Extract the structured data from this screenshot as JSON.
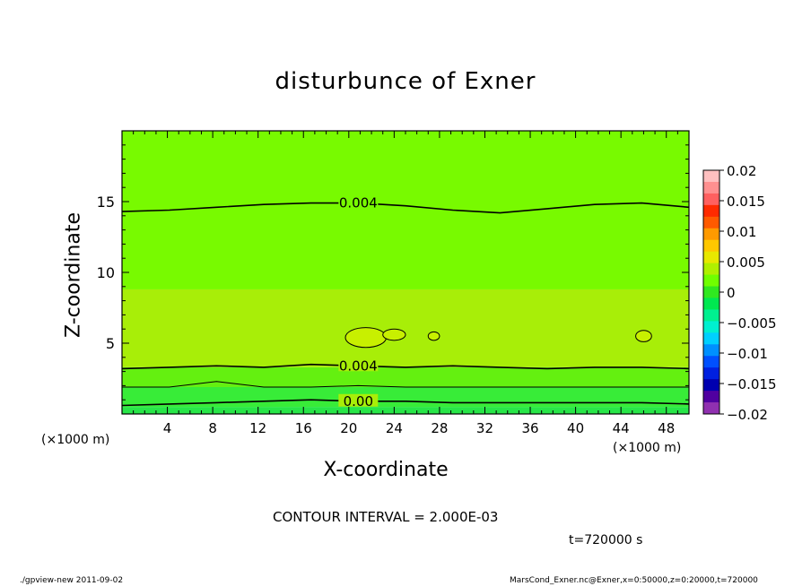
{
  "chart_data": {
    "type": "heatmap",
    "title": "disturbunce of Exner",
    "xlabel": "X-coordinate",
    "ylabel": "Z-coordinate",
    "x_unit": "(×1000 m)",
    "x_unit_left": "(×1000 m)",
    "xlim": [
      0,
      50
    ],
    "ylim": [
      0,
      20
    ],
    "x_ticks": [
      4,
      8,
      12,
      16,
      20,
      24,
      28,
      32,
      36,
      40,
      44,
      48
    ],
    "y_ticks": [
      5,
      10,
      15
    ],
    "colorbar": {
      "ticks": [
        "0.02",
        "0.015",
        "0.01",
        "0.005",
        "0",
        "−0.005",
        "−0.01",
        "−0.015",
        "−0.02"
      ],
      "range": [
        -0.02,
        0.02
      ],
      "colors": [
        "#ffc0c0",
        "#ff9090",
        "#ff6060",
        "#ff2a00",
        "#ff5a00",
        "#ff9a00",
        "#ffc800",
        "#e8e800",
        "#b0f000",
        "#70ff00",
        "#30e820",
        "#00e850",
        "#00f090",
        "#00f0d0",
        "#00d0ff",
        "#0090ff",
        "#0050ff",
        "#0020e0",
        "#0000b0",
        "#5000a0",
        "#9030b0"
      ]
    },
    "field_bands": [
      {
        "z_range": [
          0,
          0.5
        ],
        "value": -0.001,
        "color": "#28e648"
      },
      {
        "z_range": [
          0.5,
          1.9
        ],
        "value": 0.0,
        "color": "#38ec38"
      },
      {
        "z_range": [
          1.9,
          3.3
        ],
        "value": 0.003,
        "color": "#64f010"
      },
      {
        "z_range": [
          3.3,
          8.8
        ],
        "value": 0.005,
        "color": "#a8ee08"
      },
      {
        "z_range": [
          8.8,
          20
        ],
        "value": 0.004,
        "color": "#78fa00"
      }
    ],
    "contours": [
      {
        "level": 0.004,
        "label": "0.004",
        "z": [
          14.3,
          14.4,
          14.6,
          14.8,
          14.9,
          14.9,
          14.7,
          14.4,
          14.2,
          14.5,
          14.8,
          14.9,
          14.6
        ]
      },
      {
        "level": 0.004,
        "label": "0.004",
        "z": [
          3.2,
          3.3,
          3.4,
          3.3,
          3.5,
          3.4,
          3.3,
          3.4,
          3.3,
          3.2,
          3.3,
          3.3,
          3.2
        ]
      },
      {
        "level": 0.002,
        "label": "",
        "z": [
          1.9,
          1.9,
          2.3,
          1.9,
          1.9,
          2.0,
          1.9,
          1.9,
          1.9,
          1.9,
          1.9,
          1.9,
          1.9
        ]
      },
      {
        "level": 0.0,
        "label": "0.00",
        "z": [
          0.6,
          0.7,
          0.8,
          0.9,
          1.0,
          0.9,
          0.9,
          0.8,
          0.8,
          0.8,
          0.8,
          0.8,
          0.7
        ]
      }
    ],
    "closed_contours": [
      {
        "x": 21.5,
        "z": 5.4,
        "rx": 1.8,
        "rz": 0.7
      },
      {
        "x": 24.0,
        "z": 5.6,
        "rx": 1.0,
        "rz": 0.4
      },
      {
        "x": 27.5,
        "z": 5.5,
        "rx": 0.5,
        "rz": 0.3
      },
      {
        "x": 46.0,
        "z": 5.5,
        "rx": 0.7,
        "rz": 0.4
      }
    ]
  },
  "text": {
    "contour_interval": "CONTOUR INTERVAL = 2.000E-03",
    "time": "t=720000 s",
    "footer_left": "./gpview-new 2011-09-02",
    "footer_right": "MarsCond_Exner.nc@Exner,x=0:50000,z=0:20000,t=720000"
  }
}
